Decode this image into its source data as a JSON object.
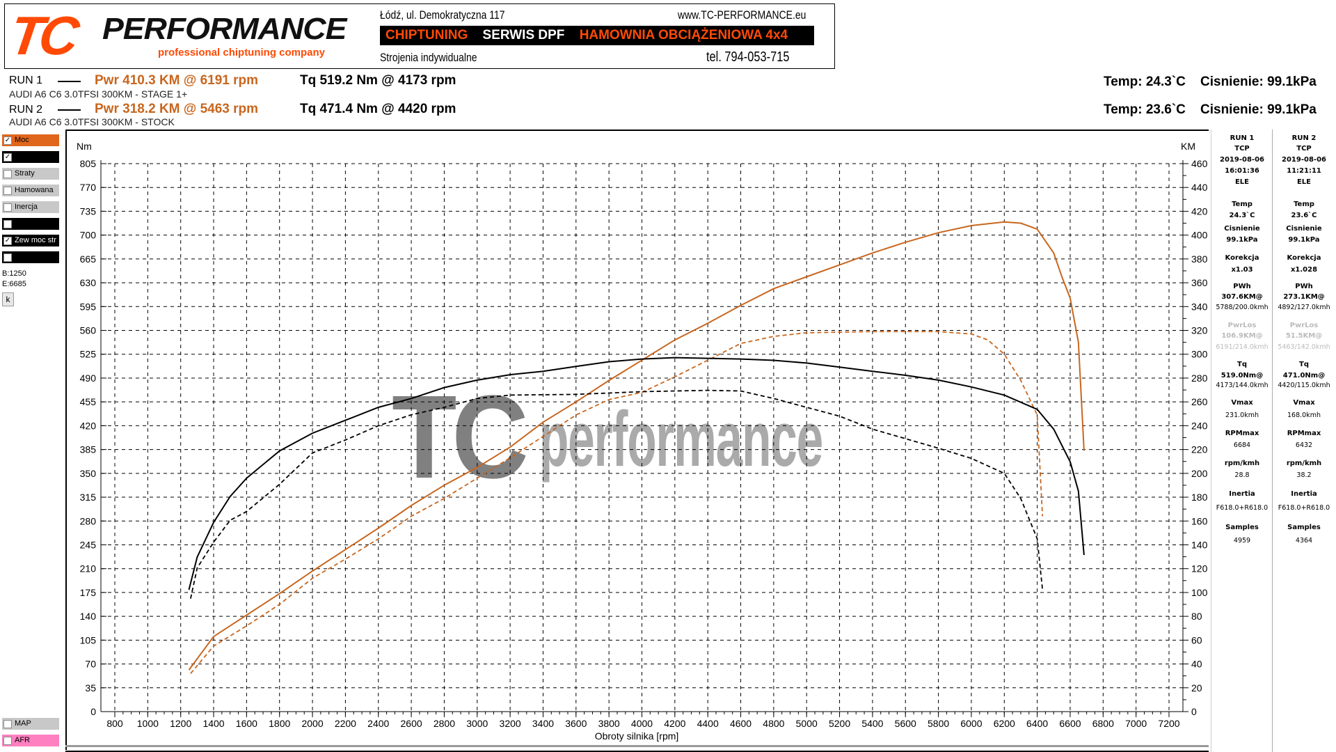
{
  "header": {
    "logo_tc": "TC",
    "logo_performance": "PERFORMANCE",
    "logo_sub": "professional chiptuning company",
    "address": "Łódź, ul. Demokratyczna 117",
    "website": "www.TC-PERFORMANCE.eu",
    "bar": [
      "CHIPTUNING",
      "SERWIS DPF",
      "HAMOWNIA OBCIĄŻENIOWA 4x4"
    ],
    "bar_colors": [
      "#ff4a06",
      "#ffffff",
      "#ff4a06"
    ],
    "tagline": "Strojenia indywidualne",
    "phone": "tel. 794-053-715"
  },
  "runs": [
    {
      "label": "RUN 1",
      "pwr": "Pwr  410.3 KM @ 6191 rpm",
      "tq": "Tq 519.2 Nm @ 4173 rpm",
      "car": "AUDI A6 C6 3.0TFSI 300KM - STAGE 1+",
      "temp": "Temp: 24.3`C",
      "press": "Cisnienie: 99.1kPa"
    },
    {
      "label": "RUN 2",
      "pwr": "Pwr  318.2 KM @ 5463 rpm",
      "tq": "Tq 471.4 Nm @ 4420 rpm",
      "car": "AUDI A6 C6 3.0TFSI 300KM - STOCK",
      "temp": "Temp: 23.6`C",
      "press": "Cisnienie: 99.1kPa"
    }
  ],
  "sidebar": {
    "items": [
      {
        "label": "Moc",
        "checked": true,
        "bg": "#e0661c"
      },
      {
        "label": "",
        "checked": true,
        "bg": "#000000"
      },
      {
        "label": "Straty",
        "checked": false,
        "bg": "#c8c8c8"
      },
      {
        "label": "Hamowana",
        "checked": false,
        "bg": "#c8c8c8"
      },
      {
        "label": "Inercja",
        "checked": false,
        "bg": "#c8c8c8"
      },
      {
        "label": "",
        "checked": false,
        "bg": "#000000"
      },
      {
        "label": "Zew moc str",
        "checked": true,
        "bg": "#000000"
      },
      {
        "label": "",
        "checked": false,
        "bg": "#000000"
      }
    ],
    "begin": "B:1250",
    "end": "E:6685",
    "k_button": "k",
    "bottom_items": [
      {
        "label": "MAP",
        "checked": false,
        "bg": "#c8c8c8"
      },
      {
        "label": "AFR",
        "checked": false,
        "bg": "#ff80c0"
      }
    ]
  },
  "right_panel": [
    {
      "head": [
        "RUN 1",
        "TCP",
        "2019-08-06",
        "16:01:36",
        "ELE"
      ],
      "temp": "24.3`C",
      "cisnienie": "99.1kPa",
      "korekcja": "x1.03",
      "pwh": [
        "307.6KM@",
        "5788/200.0kmh"
      ],
      "pwrlos": [
        "106.9KM@",
        "6191/214.0kmh"
      ],
      "tq": [
        "519.0Nm@",
        "4173/144.0kmh"
      ],
      "vmax": "231.0kmh",
      "rpmmax": "6684",
      "rpmkmh": "28.8",
      "inertia": "F618.0+R618.0",
      "samples": "4959"
    },
    {
      "head": [
        "RUN 2",
        "TCP",
        "2019-08-06",
        "11:21:11",
        "ELE"
      ],
      "temp": "23.6`C",
      "cisnienie": "99.1kPa",
      "korekcja": "x1.028",
      "pwh": [
        "273.1KM@",
        "4892/127.0kmh"
      ],
      "pwrlos": [
        "51.5KM@",
        "5463/142.0kmh"
      ],
      "tq": [
        "471.0Nm@",
        "4420/115.0kmh"
      ],
      "vmax": "168.0kmh",
      "rpmmax": "6432",
      "rpmkmh": "38.2",
      "inertia": "F618.0+R618.0",
      "samples": "4364"
    }
  ],
  "right_labels": {
    "temp": "Temp",
    "cisnienie": "Cisnienie",
    "korekcja": "Korekcja",
    "pwh": "PWh",
    "pwrlos": "PwrLos",
    "tq": "Tq",
    "vmax": "Vmax",
    "rpmmax": "RPMmax",
    "rpmkmh": "rpm/kmh",
    "inertia": "Inertia",
    "samples": "Samples"
  },
  "watermark": {
    "tc": "TC",
    "text": "performance"
  },
  "chart_data": {
    "type": "line",
    "xlabel": "Obroty silnika [rpm]",
    "ylabel_left": "Nm",
    "ylabel_right": "KM",
    "xlim": [
      800,
      7200
    ],
    "ylim_left": [
      0,
      805
    ],
    "ylim_right": [
      0,
      460
    ],
    "xticks": [
      800,
      1000,
      1200,
      1400,
      1600,
      1800,
      2000,
      2200,
      2400,
      2600,
      2800,
      3000,
      3200,
      3400,
      3600,
      3800,
      4000,
      4200,
      4400,
      4600,
      4800,
      5000,
      5200,
      5400,
      5600,
      5800,
      6000,
      6200,
      6400,
      6600,
      6800,
      7000,
      7200
    ],
    "yticks_left": [
      0,
      35,
      70,
      105,
      140,
      175,
      210,
      245,
      280,
      315,
      350,
      385,
      420,
      455,
      490,
      525,
      560,
      595,
      630,
      665,
      700,
      735,
      770,
      805
    ],
    "yticks_right": [
      0,
      20,
      40,
      60,
      80,
      100,
      120,
      140,
      160,
      180,
      200,
      220,
      240,
      260,
      280,
      300,
      320,
      340,
      360,
      380,
      400,
      420,
      440,
      460
    ],
    "grid": true,
    "colors": {
      "power": "#c8661e",
      "torque": "#000000"
    },
    "series": [
      {
        "run": "RUN 1",
        "quantity": "power",
        "axis": "right",
        "style": "solid",
        "x": [
          1250,
          1400,
          1600,
          1800,
          2000,
          2200,
          2400,
          2600,
          2800,
          3000,
          3200,
          3400,
          3600,
          3800,
          4000,
          4200,
          4400,
          4600,
          4800,
          5000,
          5200,
          5400,
          5600,
          5800,
          6000,
          6200,
          6300,
          6400,
          6500,
          6550,
          6600,
          6650,
          6684
        ],
        "y": [
          35,
          63,
          81,
          99,
          118,
          136,
          154,
          173,
          190,
          205,
          222,
          243,
          260,
          278,
          295,
          312,
          326,
          341,
          355,
          365,
          375,
          385,
          394,
          402,
          408,
          411,
          410,
          405,
          385,
          365,
          347,
          310,
          219
        ]
      },
      {
        "run": "RUN 2",
        "quantity": "power",
        "axis": "right",
        "style": "dashed",
        "x": [
          1260,
          1400,
          1600,
          1800,
          2000,
          2200,
          2400,
          2600,
          2800,
          3000,
          3200,
          3400,
          3600,
          3800,
          4000,
          4200,
          4400,
          4600,
          4800,
          5000,
          5400,
          5800,
          6000,
          6100,
          6200,
          6300,
          6400,
          6432
        ],
        "y": [
          32,
          55,
          72,
          90,
          112,
          128,
          145,
          164,
          179,
          196,
          213,
          231,
          249,
          262,
          268,
          281,
          295,
          309,
          315,
          318,
          319,
          319,
          317,
          312,
          300,
          278,
          249,
          164
        ]
      },
      {
        "run": "RUN 1",
        "quantity": "torque",
        "axis": "left",
        "style": "solid",
        "x": [
          1250,
          1300,
          1400,
          1500,
          1600,
          1800,
          2000,
          2200,
          2400,
          2600,
          2800,
          3000,
          3200,
          3400,
          3600,
          3800,
          4000,
          4200,
          4400,
          4600,
          4800,
          5000,
          5200,
          5400,
          5600,
          5800,
          6000,
          6200,
          6400,
          6500,
          6600,
          6650,
          6684
        ],
        "y": [
          179,
          227,
          278,
          316,
          343,
          383,
          409,
          428,
          447,
          460,
          476,
          487,
          495,
          500,
          507,
          514,
          518,
          520,
          519,
          518,
          516,
          512,
          506,
          500,
          494,
          487,
          477,
          465,
          444,
          415,
          367,
          324,
          230
        ]
      },
      {
        "run": "RUN 2",
        "quantity": "torque",
        "axis": "left",
        "style": "dashed",
        "x": [
          1260,
          1300,
          1400,
          1500,
          1600,
          1800,
          2000,
          2200,
          2400,
          2600,
          2800,
          3000,
          3200,
          3600,
          4000,
          4200,
          4400,
          4600,
          4800,
          5000,
          5200,
          5400,
          5600,
          5800,
          6000,
          6200,
          6300,
          6400,
          6432
        ],
        "y": [
          166,
          211,
          249,
          281,
          294,
          334,
          380,
          399,
          420,
          436,
          447,
          460,
          465,
          466,
          470,
          471,
          472,
          471,
          460,
          447,
          434,
          415,
          401,
          387,
          372,
          350,
          313,
          254,
          179
        ]
      }
    ]
  }
}
